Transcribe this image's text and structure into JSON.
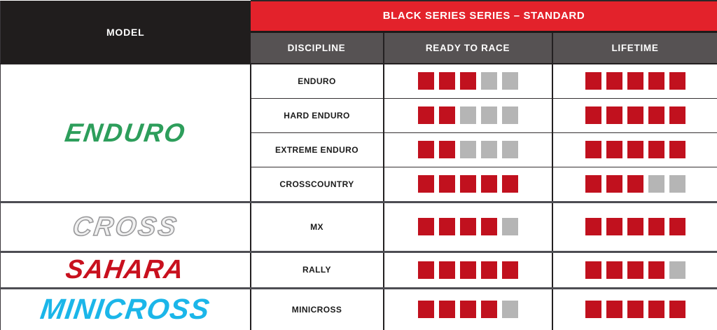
{
  "page": {
    "model_header": "MODEL",
    "series_title": "BLACK SERIES SERIES – STANDARD",
    "column_headers": [
      "DISCIPLINE",
      "READY TO RACE",
      "LIFETIME"
    ]
  },
  "colors": {
    "header_black": "#201D1D",
    "header_red": "#E3222B",
    "subheader_gray": "#565253",
    "square_red": "#C1111E",
    "square_gray": "#B5B5B5"
  },
  "chart_data": {
    "type": "table",
    "title": "BLACK SERIES SERIES – STANDARD",
    "columns": [
      "MODEL",
      "DISCIPLINE",
      "READY TO RACE",
      "LIFETIME"
    ],
    "rating_max": 5,
    "legend": "ratings shown as filled red squares out of 5",
    "groups": [
      {
        "model": "ENDURO",
        "logo_style": "solid",
        "logo_color": "#2D9E5B",
        "rows": [
          {
            "discipline": "ENDURO",
            "ready_to_race": 3,
            "lifetime": 5
          },
          {
            "discipline": "HARD ENDURO",
            "ready_to_race": 2,
            "lifetime": 5
          },
          {
            "discipline": "EXTREME ENDURO",
            "ready_to_race": 2,
            "lifetime": 5
          },
          {
            "discipline": "CROSSCOUNTRY",
            "ready_to_race": 5,
            "lifetime": 3
          }
        ]
      },
      {
        "model": "CROSS",
        "logo_style": "outline",
        "logo_color": "#9A9A9C",
        "rows": [
          {
            "discipline": "MX",
            "ready_to_race": 4,
            "lifetime": 5
          }
        ]
      },
      {
        "model": "SAHARA",
        "logo_style": "solid",
        "logo_color": "#C8101E",
        "rows": [
          {
            "discipline": "RALLY",
            "ready_to_race": 5,
            "lifetime": 4
          }
        ]
      },
      {
        "model": "MINICROSS",
        "logo_style": "solid",
        "logo_color": "#1BB6E9",
        "rows": [
          {
            "discipline": "MINICROSS",
            "ready_to_race": 4,
            "lifetime": 5
          }
        ]
      }
    ]
  }
}
